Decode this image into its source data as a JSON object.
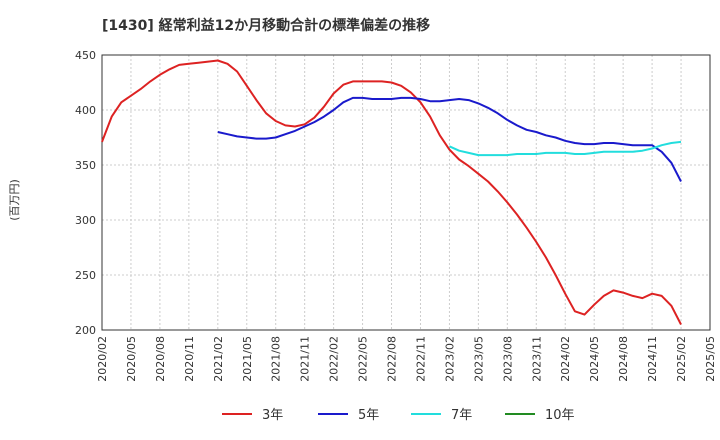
{
  "chart_data": {
    "type": "line",
    "title": "[1430]  経常利益12か月移動合計の標準偏差の推移",
    "ylabel": "(百万円)",
    "xlabel": "",
    "ylim": [
      200,
      450
    ],
    "yticks": [
      200,
      250,
      300,
      350,
      400,
      450
    ],
    "x_start": "2020/02",
    "x_end": "2025/05",
    "xticks": [
      "2020/02",
      "2020/05",
      "2020/08",
      "2020/11",
      "2021/02",
      "2021/05",
      "2021/08",
      "2021/11",
      "2022/02",
      "2022/05",
      "2022/08",
      "2022/11",
      "2023/02",
      "2023/05",
      "2023/08",
      "2023/11",
      "2024/02",
      "2024/05",
      "2024/08",
      "2024/11",
      "2025/02",
      "2025/05"
    ],
    "grid": true,
    "legend_position": "bottom",
    "series": [
      {
        "name": "3年",
        "color": "#dd2222",
        "start": "2020/02",
        "values": [
          371,
          394,
          407,
          413,
          419,
          426,
          432,
          437,
          441,
          442,
          443,
          444,
          445,
          442,
          435,
          422,
          409,
          397,
          390,
          386,
          385,
          387,
          393,
          403,
          415,
          423,
          426,
          426,
          426,
          426,
          425,
          422,
          416,
          407,
          394,
          377,
          364,
          355,
          349,
          342,
          335,
          326,
          316,
          305,
          293,
          280,
          266,
          250,
          233,
          217,
          214,
          223,
          231,
          236,
          234,
          231,
          229,
          233,
          231,
          222,
          205
        ]
      },
      {
        "name": "5年",
        "color": "#1a1acc",
        "start": "2021/02",
        "values": [
          380,
          378,
          376,
          375,
          374,
          374,
          375,
          378,
          381,
          385,
          389,
          394,
          400,
          407,
          411,
          411,
          410,
          410,
          410,
          411,
          411,
          410,
          408,
          408,
          409,
          410,
          409,
          406,
          402,
          397,
          391,
          386,
          382,
          380,
          377,
          375,
          372,
          370,
          369,
          369,
          370,
          370,
          369,
          368,
          368,
          368,
          362,
          352,
          335
        ]
      },
      {
        "name": "7年",
        "color": "#22dddd",
        "start": "2023/02",
        "values": [
          367,
          363,
          361,
          359,
          359,
          359,
          359,
          360,
          360,
          360,
          361,
          361,
          361,
          360,
          360,
          361,
          362,
          362,
          362,
          362,
          363,
          365,
          368,
          370,
          371
        ]
      },
      {
        "name": "10年",
        "color": "#228b22",
        "start": "2025/02",
        "values": []
      }
    ]
  }
}
